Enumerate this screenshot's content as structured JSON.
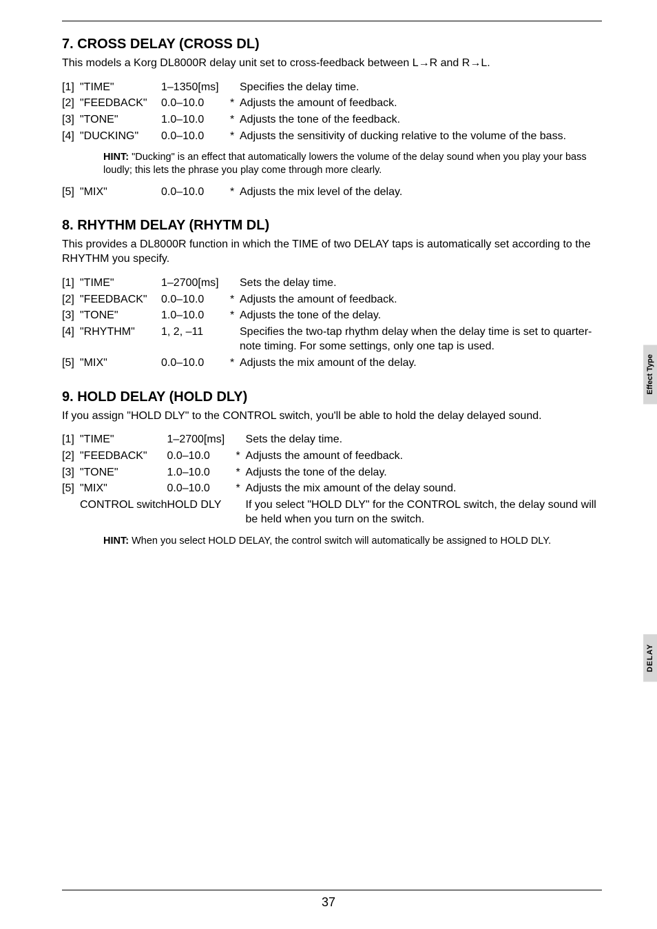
{
  "page_number": "37",
  "side_tabs": {
    "tab1": "Effect Type",
    "tab2": "DELAY"
  },
  "sections": [
    {
      "title": "7. CROSS DELAY (CROSS DL)",
      "desc": "This models a Korg DL8000R delay unit set to cross-feedback between L→R and R→L.",
      "params1": [
        {
          "idx": "[1]",
          "name": "\"TIME\"",
          "range": "1–1350[ms]",
          "star": "",
          "desc": "Specifies the delay time."
        },
        {
          "idx": "[2]",
          "name": "\"FEEDBACK\"",
          "range": "0.0–10.0",
          "star": "*",
          "desc": "Adjusts the amount of feedback."
        },
        {
          "idx": "[3]",
          "name": "\"TONE\"",
          "range": "1.0–10.0",
          "star": "*",
          "desc": "Adjusts the tone of the feedback."
        },
        {
          "idx": "[4]",
          "name": "\"DUCKING\"",
          "range": "0.0–10.0",
          "star": "*",
          "desc": "Adjusts the sensitivity of ducking relative to the volume of the bass."
        }
      ],
      "hint": "\"Ducking\" is an effect that automatically lowers the volume of the delay sound when you play your bass loudly; this lets the phrase you play come through more clearly.",
      "params2": [
        {
          "idx": "[5]",
          "name": "\"MIX\"",
          "range": "0.0–10.0",
          "star": "*",
          "desc": "Adjusts the mix level of the delay."
        }
      ]
    },
    {
      "title": "8. RHYTHM DELAY (RHYTM DL)",
      "desc": "This provides a DL8000R function in which the TIME of two DELAY taps is automatically set according to the RHYTHM you specify.",
      "params1": [
        {
          "idx": "[1]",
          "name": "\"TIME\"",
          "range": "1–2700[ms]",
          "star": "",
          "desc": "Sets the delay time."
        },
        {
          "idx": "[2]",
          "name": "\"FEEDBACK\"",
          "range": "0.0–10.0",
          "star": "*",
          "desc": "Adjusts the amount of feedback."
        },
        {
          "idx": "[3]",
          "name": "\"TONE\"",
          "range": "1.0–10.0",
          "star": "*",
          "desc": "Adjusts the tone of the delay."
        },
        {
          "idx": "[4]",
          "name": "\"RHYTHM\"",
          "range": "1, 2, –11",
          "star": "",
          "desc": "Specifies the two-tap rhythm delay when the delay time is set to quarter-note timing. For some settings, only one tap is used."
        },
        {
          "idx": "[5]",
          "name": "\"MIX\"",
          "range": "0.0–10.0",
          "star": "*",
          "desc": "Adjusts the mix amount of the delay."
        }
      ]
    },
    {
      "title": "9. HOLD DELAY (HOLD DLY)",
      "desc": "If you assign \"HOLD DLY\" to the CONTROL switch, you'll be able to hold the delay delayed sound.",
      "params1": [
        {
          "idx": "[1]",
          "name": "\"TIME\"",
          "range": "1–2700[ms]",
          "star": "",
          "desc": "Sets the delay time."
        },
        {
          "idx": "[2]",
          "name": "\"FEEDBACK\"",
          "range": "0.0–10.0",
          "star": "*",
          "desc": "Adjusts the amount of feedback."
        },
        {
          "idx": "[3]",
          "name": "\"TONE\"",
          "range": "1.0–10.0",
          "star": "*",
          "desc": "Adjusts the tone of the delay."
        },
        {
          "idx": "[5]",
          "name": "\"MIX\"",
          "range": "0.0–10.0",
          "star": "*",
          "desc": "Adjusts the mix amount of the delay sound."
        },
        {
          "idx": "",
          "name": "CONTROL switch",
          "range": "HOLD DLY",
          "star": "",
          "desc": "If you select \"HOLD DLY\" for the CONTROL switch, the delay sound will be held when you turn on the switch."
        }
      ],
      "hint": "When you select HOLD DELAY, the control switch will automatically be assigned to HOLD DLY."
    }
  ],
  "hint_label": "HINT:"
}
